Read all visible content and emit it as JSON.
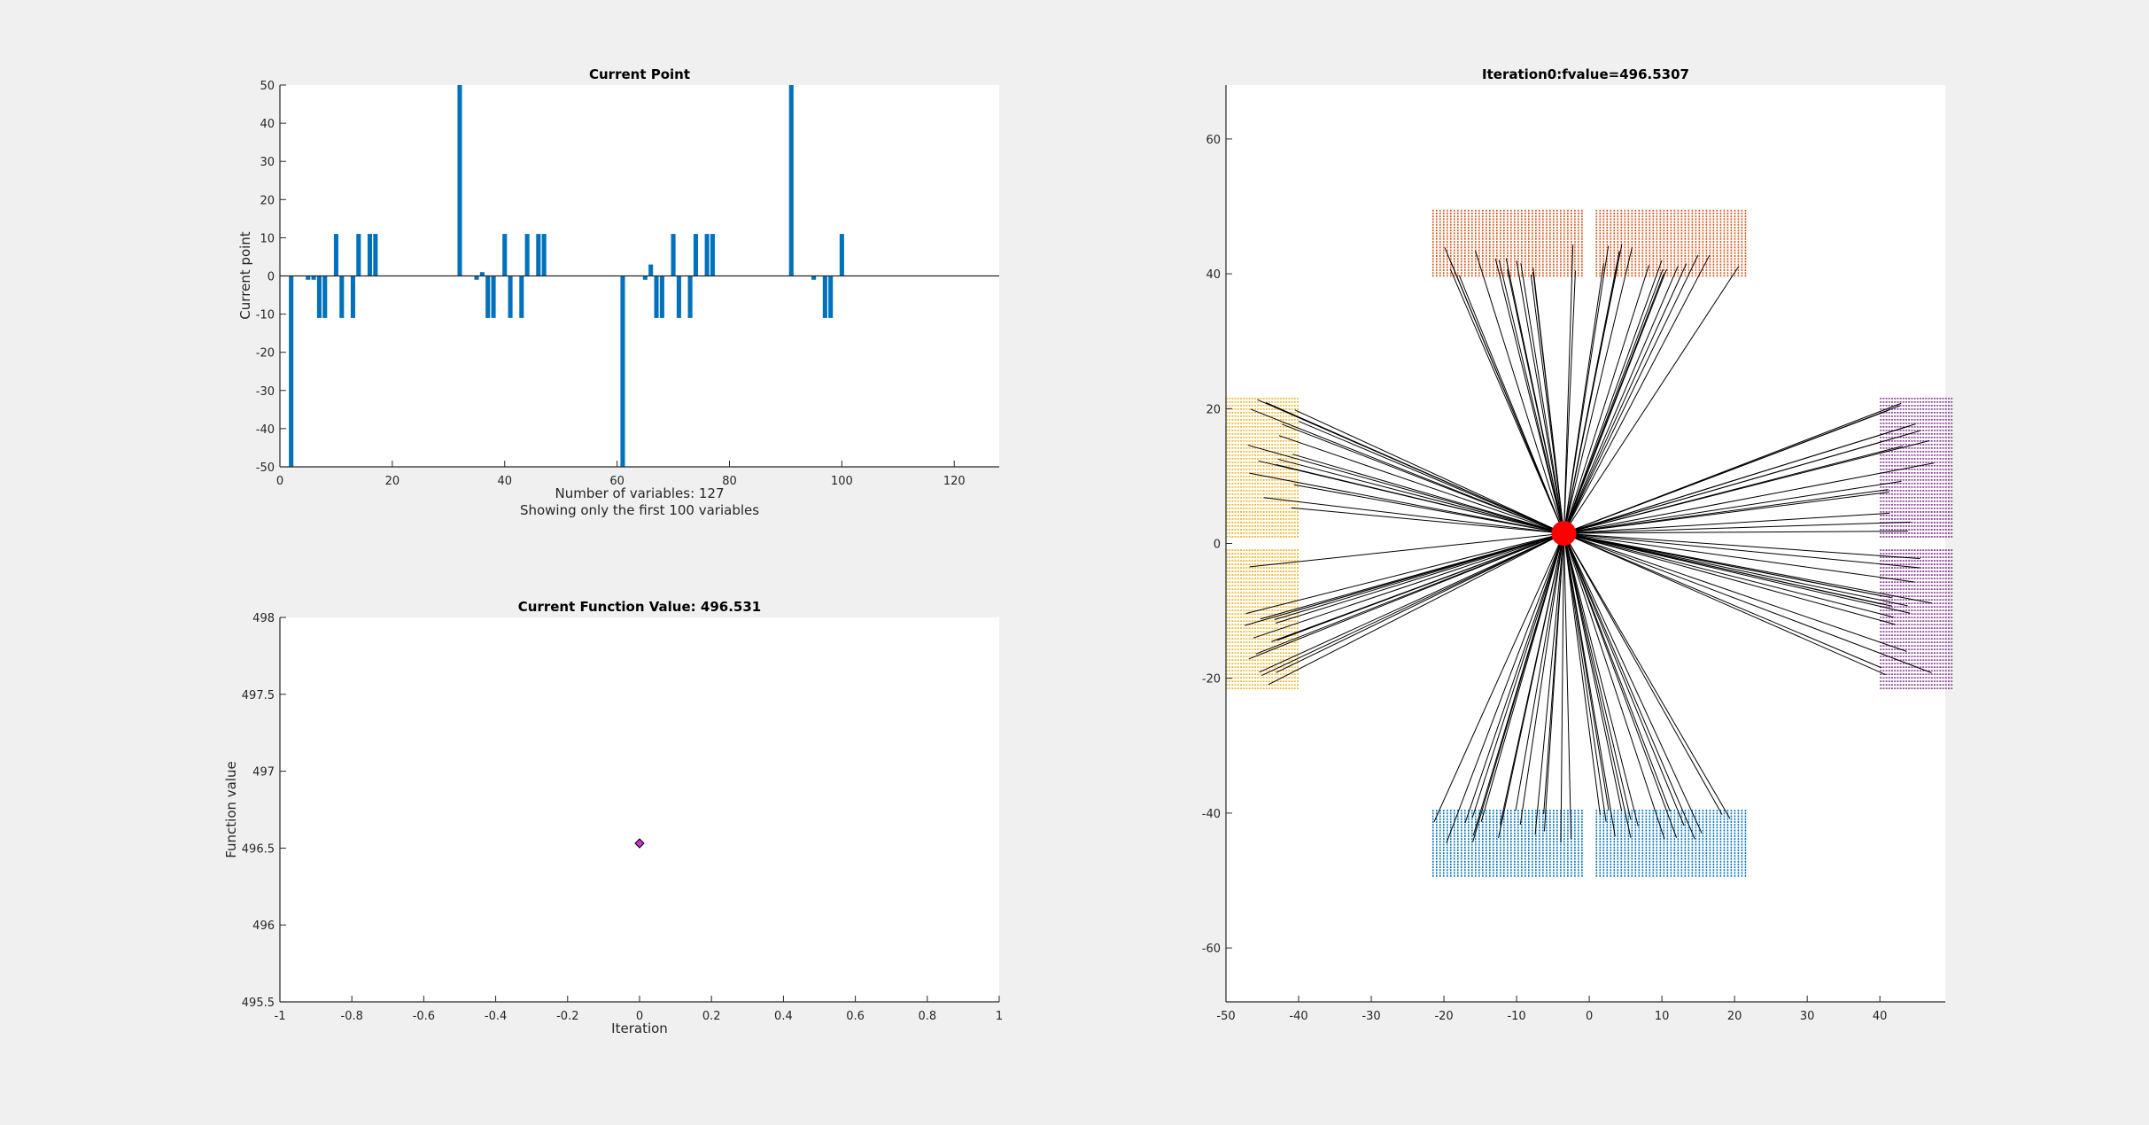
{
  "chart_data": [
    {
      "type": "bar",
      "title": "Current Point",
      "xlabel": "",
      "ylabel": "Current point",
      "xlim": [
        0,
        128
      ],
      "ylim": [
        -50,
        50
      ],
      "xticks": [
        0,
        20,
        40,
        60,
        80,
        100,
        120
      ],
      "yticks": [
        -50,
        -40,
        -30,
        -20,
        -10,
        0,
        10,
        20,
        30,
        40,
        50
      ],
      "bar_color": "#0072BD",
      "annotations": [
        "Number of variables: 127",
        "Showing only the first 100 variables"
      ],
      "x": [
        1,
        2,
        3,
        4,
        5,
        6,
        7,
        8,
        9,
        10,
        11,
        12,
        13,
        14,
        15,
        16,
        17,
        18,
        19,
        20,
        21,
        22,
        23,
        24,
        25,
        26,
        27,
        28,
        29,
        30,
        31,
        32,
        33,
        34,
        35,
        36,
        37,
        38,
        39,
        40,
        41,
        42,
        43,
        44,
        45,
        46,
        47,
        48,
        49,
        50,
        51,
        52,
        53,
        54,
        55,
        56,
        57,
        58,
        59,
        60,
        61,
        62,
        63,
        64,
        65,
        66,
        67,
        68,
        69,
        70,
        71,
        72,
        73,
        74,
        75,
        76,
        77,
        78,
        79,
        80,
        81,
        82,
        83,
        84,
        85,
        86,
        87,
        88,
        89,
        90,
        91,
        92,
        93,
        94,
        95,
        96,
        97,
        98,
        99,
        100
      ],
      "values": [
        0,
        -50,
        0,
        0,
        -1,
        -1,
        -11,
        -11,
        0,
        11,
        -11,
        0,
        -11,
        11,
        0,
        11,
        11,
        0,
        0,
        0,
        0,
        0,
        0,
        0,
        0,
        0,
        0,
        0,
        0,
        0,
        0,
        50,
        0,
        0,
        -1,
        1,
        -11,
        -11,
        0,
        11,
        -11,
        0,
        -11,
        11,
        0,
        11,
        11,
        0,
        0,
        0,
        0,
        0,
        0,
        0,
        0,
        0,
        0,
        0,
        0,
        0,
        -50,
        0,
        0,
        0,
        -1,
        3,
        -11,
        -11,
        0,
        11,
        -11,
        0,
        -11,
        11,
        0,
        11,
        11,
        0,
        0,
        0,
        0,
        0,
        0,
        0,
        0,
        0,
        0,
        0,
        0,
        0,
        50,
        0,
        0,
        0,
        -1,
        0,
        -11,
        -11,
        0,
        11
      ]
    },
    {
      "type": "scatter",
      "title": "Current Function Value: 496.531",
      "xlabel": "Iteration",
      "ylabel": "Function value",
      "xlim": [
        -1,
        1
      ],
      "ylim": [
        495.5,
        498
      ],
      "xticks": [
        -1,
        -0.8,
        -0.6,
        -0.4,
        -0.2,
        0,
        0.2,
        0.4,
        0.6,
        0.8,
        1
      ],
      "yticks": [
        495.5,
        496,
        496.5,
        497,
        497.5,
        498
      ],
      "points": [
        {
          "x": 0,
          "y": 496.531
        }
      ],
      "marker_fill": "#cc33cc",
      "marker_edge": "#000000"
    },
    {
      "type": "scatter",
      "title": "Iteration0:fvalue=496.5307",
      "xlabel": "",
      "ylabel": "",
      "xlim": [
        -50,
        49
      ],
      "ylim": [
        -68,
        68
      ],
      "xticks": [
        -50,
        -40,
        -30,
        -20,
        -10,
        0,
        10,
        20,
        30,
        40
      ],
      "yticks": [
        -60,
        -40,
        -20,
        0,
        20,
        40,
        60
      ],
      "center": {
        "x": -3.5,
        "y": 1.5,
        "color": "#ff0000"
      },
      "panels": [
        {
          "name": "top-left",
          "x": [
            -21.5,
            -1
          ],
          "y": [
            39.5,
            49.5
          ],
          "color": "#D95319",
          "orientation": "vertical"
        },
        {
          "name": "top-right",
          "x": [
            1,
            21.5
          ],
          "y": [
            39.5,
            49.5
          ],
          "color": "#D95319",
          "orientation": "vertical"
        },
        {
          "name": "bottom-left",
          "x": [
            -21.5,
            -1
          ],
          "y": [
            -49.5,
            -39.5
          ],
          "color": "#0072BD",
          "orientation": "vertical"
        },
        {
          "name": "bottom-right",
          "x": [
            1,
            21.5
          ],
          "y": [
            -49.5,
            -39.5
          ],
          "color": "#0072BD",
          "orientation": "vertical"
        },
        {
          "name": "left-top",
          "x": [
            -50,
            -40
          ],
          "y": [
            1,
            21.5
          ],
          "color": "#EDB120",
          "orientation": "horizontal"
        },
        {
          "name": "left-bottom",
          "x": [
            -50,
            -40
          ],
          "y": [
            -21.5,
            -1
          ],
          "color": "#EDB120",
          "orientation": "horizontal"
        },
        {
          "name": "right-top",
          "x": [
            40,
            50
          ],
          "y": [
            1,
            21.5
          ],
          "color": "#7E2F8E",
          "orientation": "horizontal"
        },
        {
          "name": "right-bottom",
          "x": [
            40,
            50
          ],
          "y": [
            -21.5,
            -1
          ],
          "color": "#7E2F8E",
          "orientation": "horizontal"
        }
      ]
    }
  ]
}
